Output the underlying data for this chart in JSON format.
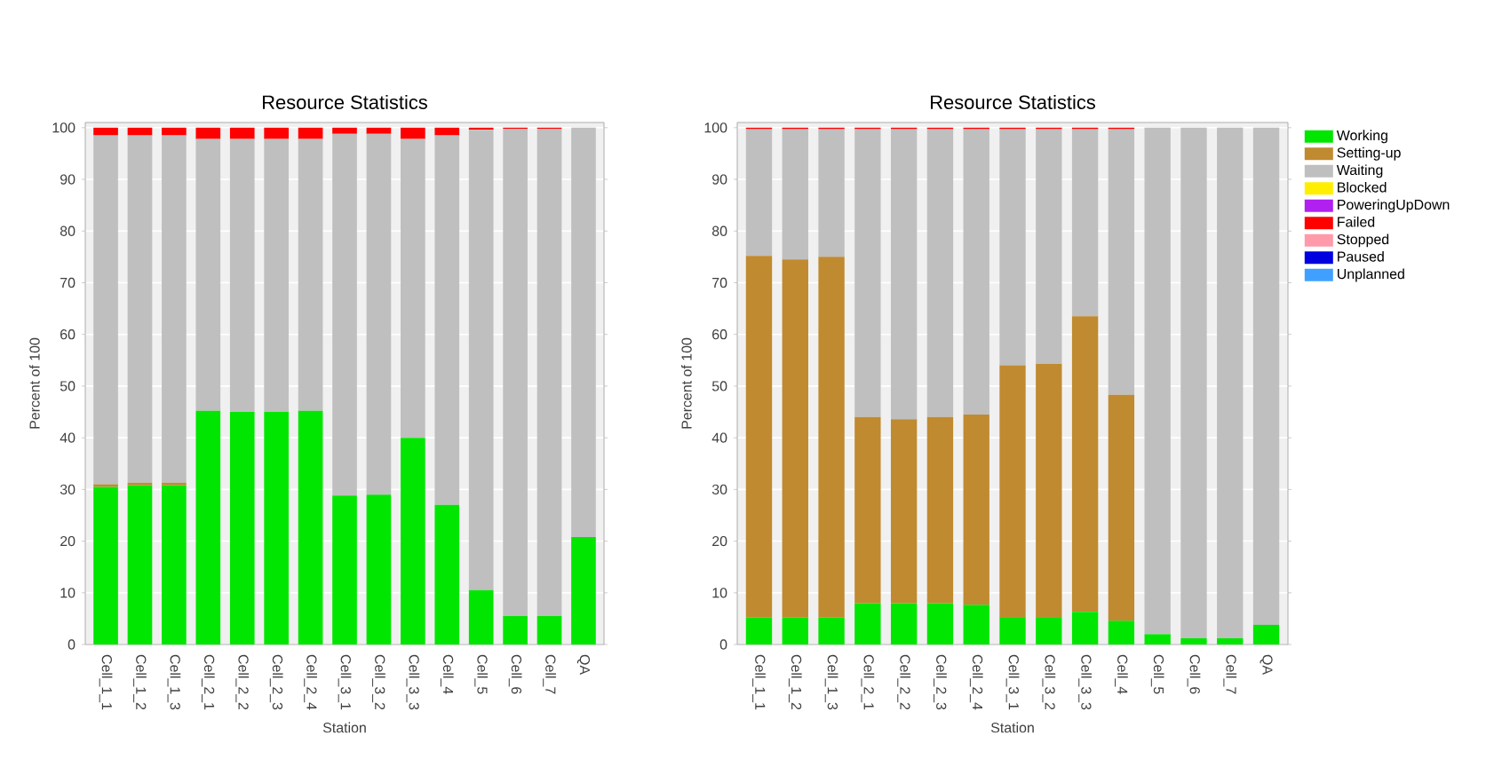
{
  "chart_data": [
    {
      "type": "bar",
      "stacked": true,
      "title": "Resource Statistics",
      "xlabel": "Station",
      "ylabel": "Percent of 100",
      "categories": [
        "Cell_1_1",
        "Cell_1_2",
        "Cell_1_3",
        "Cell_2_1",
        "Cell_2_2",
        "Cell_2_3",
        "Cell_2_4",
        "Cell_3_1",
        "Cell_3_2",
        "Cell_3_3",
        "Cell_4",
        "Cell_5",
        "Cell_6",
        "Cell_7",
        "QA"
      ],
      "series": [
        {
          "color": "#00e600",
          "values": [
            30.5,
            30.8,
            30.8,
            45.2,
            45,
            45,
            45.2,
            28.8,
            29,
            40,
            27,
            10.5,
            5.5,
            5.5,
            20.8
          ]
        },
        {
          "color": "#c08a30",
          "values": [
            0.5,
            0.5,
            0.5,
            0,
            0,
            0,
            0,
            0,
            0,
            0,
            0,
            0,
            0,
            0,
            0
          ]
        },
        {
          "color": "#bfbfbf",
          "values": [
            67.5,
            67.2,
            67.2,
            52.6,
            52.8,
            52.8,
            52.6,
            70,
            69.8,
            57.8,
            71.5,
            89.1,
            94.3,
            94.3,
            79.2
          ]
        },
        {
          "color": "#ff0000",
          "values": [
            1.5,
            1.5,
            1.5,
            2.2,
            2.2,
            2.2,
            2.2,
            1.2,
            1.2,
            2.2,
            1.5,
            0.4,
            0.2,
            0.2,
            0
          ]
        }
      ],
      "ylim": [
        0,
        101
      ],
      "yticks": [
        0,
        10,
        20,
        30,
        40,
        50,
        60,
        70,
        80,
        90,
        100
      ],
      "grid": "y",
      "legend": false
    },
    {
      "type": "bar",
      "stacked": true,
      "title": "Resource Statistics",
      "xlabel": "Station",
      "ylabel": "Percent of 100",
      "categories": [
        "Cell_1_1",
        "Cell_1_2",
        "Cell_1_3",
        "Cell_2_1",
        "Cell_2_2",
        "Cell_2_3",
        "Cell_2_4",
        "Cell_3_1",
        "Cell_3_2",
        "Cell_3_3",
        "Cell_4",
        "Cell_5",
        "Cell_6",
        "Cell_7",
        "QA"
      ],
      "series": [
        {
          "name": "Working",
          "color": "#00e600",
          "values": [
            5.2,
            5.2,
            5.2,
            8,
            8,
            8,
            7.7,
            5.3,
            5.3,
            6.3,
            4.6,
            2,
            1.2,
            1.2,
            3.8
          ]
        },
        {
          "name": "Setting-up",
          "color": "#c08a30",
          "values": [
            70,
            69.3,
            69.8,
            36,
            35.6,
            36,
            36.8,
            48.7,
            49,
            57.2,
            43.7,
            0,
            0,
            0,
            0
          ]
        },
        {
          "name": "Waiting",
          "color": "#bfbfbf",
          "values": [
            24.5,
            25.2,
            24.7,
            55.7,
            56.1,
            55.7,
            55.2,
            45.7,
            45.4,
            36.2,
            51.4,
            98,
            98.8,
            98.8,
            96.2
          ]
        },
        {
          "name": "Blocked",
          "color": "#ffee00",
          "values": [
            0,
            0,
            0,
            0,
            0,
            0,
            0,
            0,
            0,
            0,
            0,
            0,
            0,
            0,
            0
          ]
        },
        {
          "name": "PoweringUpDown",
          "color": "#b020f0",
          "values": [
            0,
            0,
            0,
            0,
            0,
            0,
            0,
            0,
            0,
            0,
            0,
            0,
            0,
            0,
            0
          ]
        },
        {
          "name": "Failed",
          "color": "#ff0000",
          "values": [
            0.3,
            0.3,
            0.3,
            0.3,
            0.3,
            0.3,
            0.3,
            0.3,
            0.3,
            0.3,
            0.3,
            0,
            0,
            0,
            0
          ]
        },
        {
          "name": "Stopped",
          "color": "#ff9aaa",
          "values": [
            0,
            0,
            0,
            0,
            0,
            0,
            0,
            0,
            0,
            0,
            0,
            0,
            0,
            0,
            0
          ]
        },
        {
          "name": "Paused",
          "color": "#0000e0",
          "values": [
            0,
            0,
            0,
            0,
            0,
            0,
            0,
            0,
            0,
            0,
            0,
            0,
            0,
            0,
            0
          ]
        },
        {
          "name": "Unplanned",
          "color": "#40a0ff",
          "values": [
            0,
            0,
            0,
            0,
            0,
            0,
            0,
            0,
            0,
            0,
            0,
            0,
            0,
            0,
            0
          ]
        }
      ],
      "ylim": [
        0,
        101
      ],
      "yticks": [
        0,
        10,
        20,
        30,
        40,
        50,
        60,
        70,
        80,
        90,
        100
      ],
      "grid": "y",
      "legend": "right"
    }
  ]
}
